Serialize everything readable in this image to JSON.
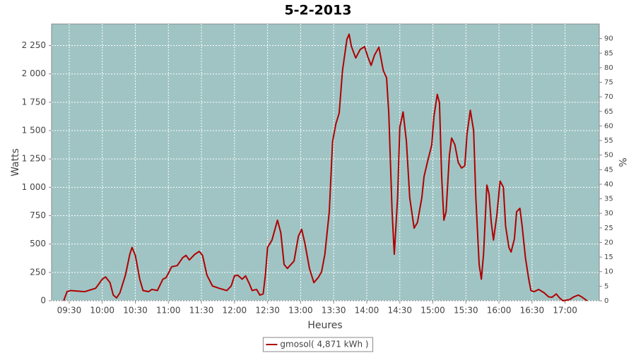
{
  "chart_data": {
    "type": "line",
    "title": "5-2-2013",
    "x_label": "Heures",
    "y_label": "Watts",
    "y2_label": "%",
    "xlim": [
      "09:14",
      "17:31"
    ],
    "xticks": [
      "09:30",
      "10:00",
      "10:30",
      "11:00",
      "11:30",
      "12:00",
      "12:30",
      "13:00",
      "13:30",
      "14:00",
      "14:30",
      "15:00",
      "15:30",
      "16:00",
      "16:30",
      "17:00"
    ],
    "ylim": [
      0,
      2440
    ],
    "yticks": [
      0,
      250,
      500,
      750,
      {
        "value": 1000,
        "label": "1 000"
      },
      {
        "value": 1250,
        "label": "1 250"
      },
      {
        "value": 1500,
        "label": "1 500"
      },
      {
        "value": 1750,
        "label": "1 750"
      },
      {
        "value": 2000,
        "label": "2 000"
      },
      {
        "value": 2250,
        "label": "2 250"
      }
    ],
    "y2lim": [
      0,
      95
    ],
    "y2ticks": [
      0,
      5,
      10,
      15,
      20,
      25,
      30,
      35,
      40,
      45,
      50,
      55,
      60,
      65,
      70,
      75,
      80,
      85,
      90
    ],
    "grid": true,
    "legend": "bottom",
    "x": [
      "09:25",
      "09:28",
      "09:31",
      "09:44",
      "09:54",
      "10:00",
      "10:03",
      "10:07",
      "10:10",
      "10:13",
      "10:16",
      "10:21",
      "10:25",
      "10:27",
      "10:30",
      "10:34",
      "10:37",
      "10:42",
      "10:45",
      "10:50",
      "10:55",
      "10:58",
      "11:03",
      "11:08",
      "11:13",
      "11:16",
      "11:19",
      "11:24",
      "11:28",
      "11:31",
      "11:35",
      "11:40",
      "11:46",
      "11:53",
      "11:57",
      "12:00",
      "12:03",
      "12:07",
      "12:10",
      "12:13",
      "12:16",
      "12:20",
      "12:23",
      "12:26",
      "12:28",
      "12:30",
      "12:34",
      "12:39",
      "12:42",
      "12:45",
      "12:48",
      "12:54",
      "12:58",
      "13:01",
      "13:04",
      "13:08",
      "13:12",
      "13:16",
      "13:19",
      "13:22",
      "13:26",
      "13:29",
      "13:32",
      "13:35",
      "13:38",
      "13:42",
      "13:44",
      "13:46",
      "13:50",
      "13:54",
      "13:58",
      "14:01",
      "14:04",
      "14:07",
      "14:11",
      "14:12",
      "14:15",
      "14:18",
      "14:20",
      "14:23",
      "14:25",
      "14:28",
      "14:30",
      "14:33",
      "14:36",
      "14:39",
      "14:43",
      "14:46",
      "14:50",
      "14:52",
      "14:55",
      "14:59",
      "15:01",
      "15:04",
      "15:06",
      "15:08",
      "15:10",
      "15:12",
      "15:15",
      "15:17",
      "15:20",
      "15:23",
      "15:26",
      "15:29",
      "15:31",
      "15:34",
      "15:37",
      "15:39",
      "15:42",
      "15:44",
      "15:46",
      "15:49",
      "15:51",
      "15:53",
      "15:55",
      "15:58",
      "16:01",
      "16:04",
      "16:06",
      "16:09",
      "16:11",
      "16:14",
      "16:16",
      "16:19",
      "16:21",
      "16:24",
      "16:27",
      "16:29",
      "16:32",
      "16:36",
      "16:41",
      "16:45",
      "16:48",
      "16:52",
      "16:55",
      "16:58",
      "17:04",
      "17:08",
      "17:12",
      "17:15",
      "17:20"
    ],
    "series": [
      {
        "name": "gmosol( 4,871 kWh )",
        "color": "#b00000",
        "values": [
          0,
          80,
          90,
          80,
          110,
          190,
          210,
          160,
          50,
          25,
          70,
          225,
          410,
          470,
          400,
          190,
          90,
          80,
          100,
          90,
          190,
          205,
          300,
          310,
          380,
          400,
          360,
          410,
          435,
          400,
          225,
          130,
          110,
          90,
          130,
          220,
          225,
          190,
          220,
          160,
          90,
          100,
          50,
          60,
          225,
          470,
          535,
          710,
          600,
          320,
          285,
          350,
          570,
          630,
          500,
          285,
          160,
          205,
          255,
          410,
          785,
          1405,
          1560,
          1655,
          2030,
          2305,
          2350,
          2245,
          2140,
          2215,
          2240,
          2150,
          2075,
          2165,
          2235,
          2185,
          2030,
          1965,
          1655,
          785,
          410,
          910,
          1530,
          1665,
          1405,
          910,
          640,
          690,
          910,
          1095,
          1220,
          1375,
          1625,
          1820,
          1745,
          1095,
          710,
          785,
          1280,
          1435,
          1375,
          1220,
          1170,
          1190,
          1470,
          1680,
          1500,
          910,
          320,
          190,
          410,
          1020,
          940,
          690,
          535,
          750,
          1055,
          1000,
          660,
          470,
          430,
          545,
          785,
          815,
          660,
          380,
          190,
          90,
          80,
          100,
          70,
          35,
          30,
          60,
          25,
          0,
          10,
          35,
          50,
          35,
          0
        ]
      }
    ]
  }
}
